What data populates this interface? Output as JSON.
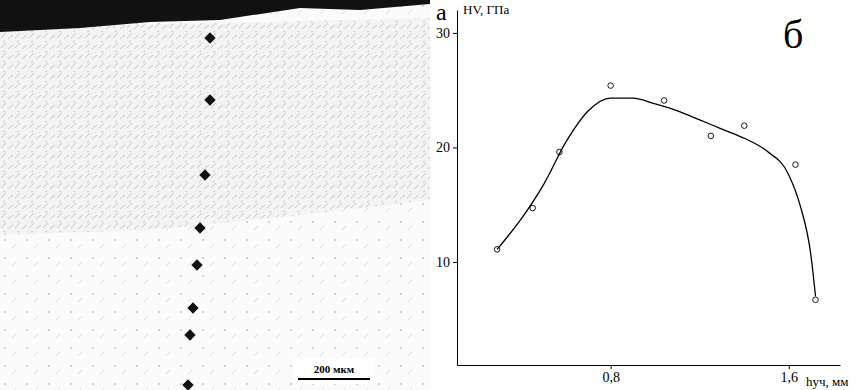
{
  "panels": {
    "a": {
      "label": "а",
      "scale_bar": "200 мкм"
    },
    "b": {
      "label": "б"
    }
  },
  "chart_data": {
    "type": "scatter",
    "y_label": "HV, ГПа",
    "x_label": "hуч, мм",
    "xlim": [
      0.11,
      1.83
    ],
    "ylim": [
      1,
      32
    ],
    "xticks": [
      {
        "value": 0.8,
        "label": "0,8"
      },
      {
        "value": 1.6,
        "label": "1,6"
      }
    ],
    "yticks": [
      10,
      20,
      30
    ],
    "grid": false,
    "series": [
      {
        "type": "scatter",
        "marker": "circle",
        "color": "#000000",
        "x": [
          0.29,
          0.45,
          0.57,
          0.8,
          1.04,
          1.25,
          1.4,
          1.63,
          1.72
        ],
        "values": [
          11.1,
          14.7,
          19.6,
          25.4,
          24.1,
          21.0,
          21.9,
          18.5,
          6.7
        ]
      },
      {
        "type": "line",
        "line_style": "solid",
        "color": "#000000",
        "x": [
          0.29,
          0.4,
          0.5,
          0.6,
          0.7,
          0.8,
          0.9,
          1.0,
          1.1,
          1.2,
          1.3,
          1.4,
          1.5,
          1.6,
          1.65,
          1.7,
          1.72
        ],
        "values": [
          11.1,
          13.8,
          16.8,
          20.5,
          23.2,
          24.3,
          24.3,
          23.8,
          23.2,
          22.4,
          21.6,
          20.8,
          19.7,
          17.6,
          15.0,
          10.5,
          7.0
        ]
      }
    ]
  }
}
